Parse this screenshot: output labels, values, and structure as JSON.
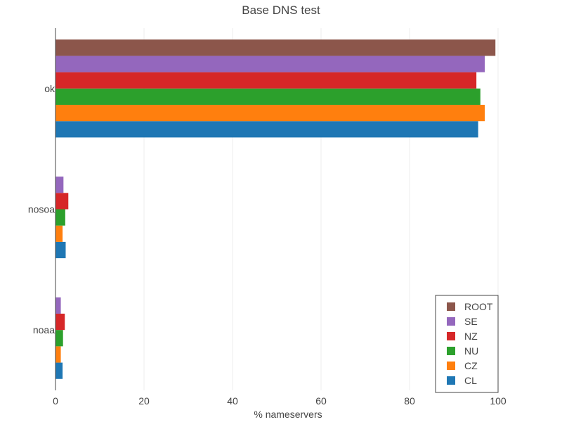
{
  "chart_data": {
    "type": "bar",
    "orientation": "horizontal",
    "title": "Base DNS test",
    "xlabel": "% nameservers",
    "ylabel": "",
    "xlim": [
      0,
      100
    ],
    "xticks": [
      0,
      20,
      40,
      60,
      80,
      100
    ],
    "grid": "vertical",
    "legend_position": "bottom-right",
    "categories": [
      "ok",
      "nosoa",
      "noaa"
    ],
    "series": [
      {
        "name": "CL",
        "color": "#1f77b4",
        "values": [
          95.5,
          2.3,
          1.6
        ]
      },
      {
        "name": "CZ",
        "color": "#ff7f0e",
        "values": [
          97.0,
          1.6,
          1.2
        ]
      },
      {
        "name": "NU",
        "color": "#2ca02c",
        "values": [
          96.0,
          2.2,
          1.7
        ]
      },
      {
        "name": "NZ",
        "color": "#d62728",
        "values": [
          95.1,
          2.9,
          2.1
        ]
      },
      {
        "name": "SE",
        "color": "#9467bd",
        "values": [
          97.0,
          1.8,
          1.2
        ]
      },
      {
        "name": "ROOT",
        "color": "#8c564b",
        "values": [
          99.4,
          0,
          0
        ]
      }
    ]
  }
}
